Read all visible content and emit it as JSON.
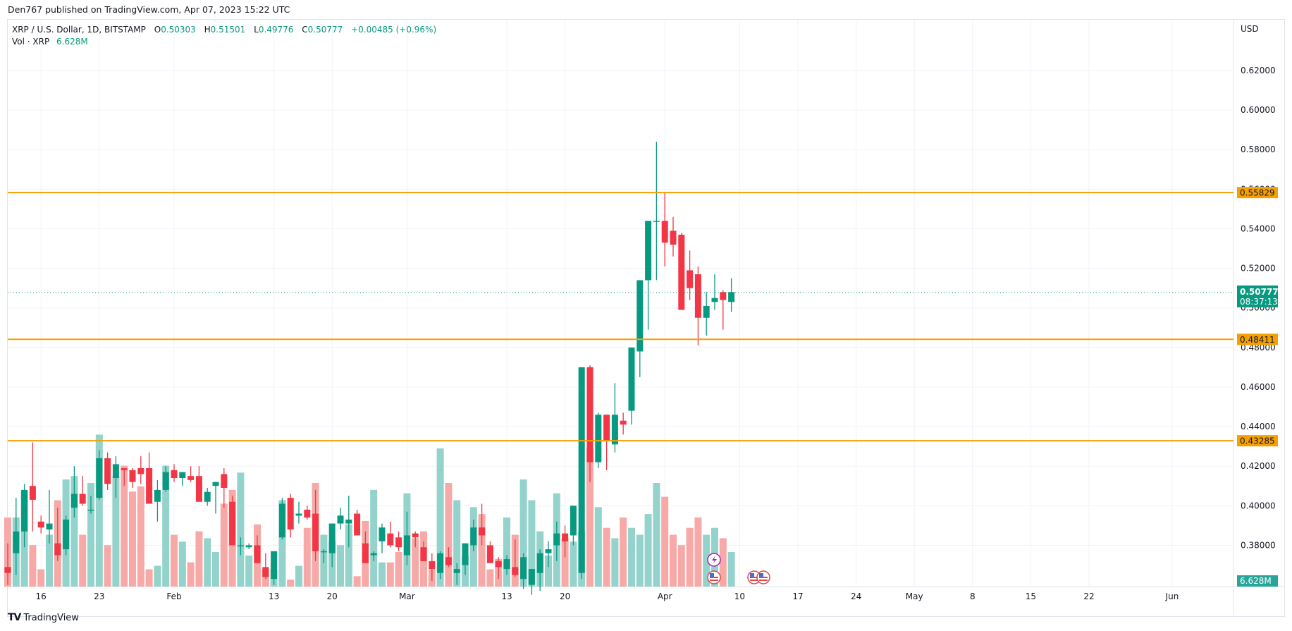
{
  "header": {
    "published": "Den767 published on TradingView.com, Apr 07, 2023 15:22 UTC"
  },
  "legend": {
    "symbol": "XRP / U.S. Dollar, 1D, BITSTAMP",
    "o_label": "O",
    "o_value": "0.50303",
    "h_label": "H",
    "h_value": "0.51501",
    "l_label": "L",
    "l_value": "0.49776",
    "c_label": "C",
    "c_value": "0.50777",
    "change": "+0.00485 (+0.96%)",
    "vol_label": "Vol · XRP",
    "vol_value": "6.628M"
  },
  "axis": {
    "currency": "USD",
    "current_price": "0.50777",
    "countdown": "08:37:13",
    "volume_tag": "6.628M"
  },
  "levels": [
    {
      "label": "0.55829",
      "price": 0.55829
    },
    {
      "label": "0.48411",
      "price": 0.48411
    },
    {
      "label": "0.43285",
      "price": 0.43285
    }
  ],
  "footer": {
    "brand": "TradingView"
  },
  "colors": {
    "up": "#089981",
    "down": "#f23645",
    "up_vol": "#93d3cb",
    "down_vol": "#f7a9a7",
    "level": "#f5a000",
    "grid": "#f0f3fa",
    "text": "#131722"
  },
  "chart_data": {
    "type": "candlestick",
    "title": "XRP / U.S. Dollar, 1D, BITSTAMP",
    "xlabel": "",
    "ylabel": "USD",
    "ylim": [
      0.365,
      0.635
    ],
    "y_ticks": [
      0.38,
      0.4,
      0.42,
      0.44,
      0.46,
      0.48,
      0.5,
      0.52,
      0.54,
      0.56,
      0.58,
      0.6,
      0.62
    ],
    "x_ticks": [
      {
        "label": "16",
        "day": 4
      },
      {
        "label": "23",
        "day": 11
      },
      {
        "label": "Feb",
        "day": 20
      },
      {
        "label": "13",
        "day": 32
      },
      {
        "label": "20",
        "day": 39
      },
      {
        "label": "Mar",
        "day": 48
      },
      {
        "label": "13",
        "day": 60
      },
      {
        "label": "20",
        "day": 67
      },
      {
        "label": "Apr",
        "day": 79
      },
      {
        "label": "10",
        "day": 88
      },
      {
        "label": "17",
        "day": 95
      },
      {
        "label": "24",
        "day": 102
      },
      {
        "label": "May",
        "day": 109
      },
      {
        "label": "8",
        "day": 116
      },
      {
        "label": "15",
        "day": 123
      },
      {
        "label": "22",
        "day": 130
      },
      {
        "label": "Jun",
        "day": 140
      }
    ],
    "horizontal_levels": [
      0.55829,
      0.48411,
      0.43285
    ],
    "last_price": 0.50777,
    "candles": [
      [
        0.369,
        0.381,
        0.36,
        0.366
      ],
      [
        0.376,
        0.404,
        0.365,
        0.387
      ],
      [
        0.387,
        0.411,
        0.379,
        0.408
      ],
      [
        0.41,
        0.432,
        0.387,
        0.403
      ],
      [
        0.392,
        0.395,
        0.386,
        0.389
      ],
      [
        0.388,
        0.408,
        0.381,
        0.391
      ],
      [
        0.381,
        0.399,
        0.372,
        0.375
      ],
      [
        0.378,
        0.395,
        0.375,
        0.393
      ],
      [
        0.399,
        0.42,
        0.394,
        0.406
      ],
      [
        0.406,
        0.415,
        0.4,
        0.401
      ],
      [
        0.398,
        0.405,
        0.396,
        0.398
      ],
      [
        0.404,
        0.428,
        0.403,
        0.424
      ],
      [
        0.424,
        0.427,
        0.408,
        0.411
      ],
      [
        0.414,
        0.425,
        0.404,
        0.421
      ],
      [
        0.419,
        0.417,
        0.41,
        0.418
      ],
      [
        0.418,
        0.419,
        0.409,
        0.412
      ],
      [
        0.419,
        0.425,
        0.411,
        0.416
      ],
      [
        0.419,
        0.427,
        0.403,
        0.401
      ],
      [
        0.402,
        0.413,
        0.392,
        0.408
      ],
      [
        0.408,
        0.42,
        0.407,
        0.417
      ],
      [
        0.418,
        0.421,
        0.412,
        0.414
      ],
      [
        0.414,
        0.416,
        0.41,
        0.417
      ],
      [
        0.415,
        0.42,
        0.412,
        0.413
      ],
      [
        0.415,
        0.42,
        0.405,
        0.402
      ],
      [
        0.402,
        0.409,
        0.4,
        0.407
      ],
      [
        0.41,
        0.409,
        0.396,
        0.412
      ],
      [
        0.416,
        0.419,
        0.399,
        0.409
      ],
      [
        0.402,
        0.405,
        0.39,
        0.38
      ],
      [
        0.38,
        0.384,
        0.375,
        0.38
      ],
      [
        0.379,
        0.381,
        0.378,
        0.38
      ],
      [
        0.38,
        0.385,
        0.372,
        0.371
      ],
      [
        0.369,
        0.376,
        0.363,
        0.364
      ],
      [
        0.363,
        0.375,
        0.36,
        0.377
      ],
      [
        0.384,
        0.404,
        0.383,
        0.401
      ],
      [
        0.404,
        0.406,
        0.384,
        0.388
      ],
      [
        0.395,
        0.402,
        0.391,
        0.396
      ],
      [
        0.398,
        0.4,
        0.393,
        0.394
      ],
      [
        0.396,
        0.408,
        0.372,
        0.377
      ],
      [
        0.377,
        0.378,
        0.371,
        0.377
      ],
      [
        0.376,
        0.39,
        0.369,
        0.391
      ],
      [
        0.391,
        0.399,
        0.388,
        0.395
      ],
      [
        0.391,
        0.405,
        0.379,
        0.393
      ],
      [
        0.396,
        0.398,
        0.385,
        0.385
      ],
      [
        0.381,
        0.387,
        0.374,
        0.371
      ],
      [
        0.375,
        0.377,
        0.372,
        0.376
      ],
      [
        0.382,
        0.391,
        0.376,
        0.389
      ],
      [
        0.386,
        0.392,
        0.379,
        0.38
      ],
      [
        0.384,
        0.387,
        0.377,
        0.379
      ],
      [
        0.375,
        0.397,
        0.37,
        0.385
      ],
      [
        0.386,
        0.387,
        0.379,
        0.384
      ],
      [
        0.379,
        0.382,
        0.373,
        0.372
      ],
      [
        0.372,
        0.376,
        0.362,
        0.368
      ],
      [
        0.366,
        0.377,
        0.363,
        0.376
      ],
      [
        0.374,
        0.379,
        0.369,
        0.37
      ],
      [
        0.366,
        0.371,
        0.36,
        0.368
      ],
      [
        0.37,
        0.379,
        0.365,
        0.381
      ],
      [
        0.38,
        0.393,
        0.377,
        0.389
      ],
      [
        0.389,
        0.401,
        0.38,
        0.385
      ],
      [
        0.38,
        0.382,
        0.378,
        0.371
      ],
      [
        0.372,
        0.374,
        0.363,
        0.369
      ],
      [
        0.368,
        0.375,
        0.365,
        0.373
      ],
      [
        0.369,
        0.383,
        0.364,
        0.365
      ],
      [
        0.363,
        0.376,
        0.358,
        0.374
      ],
      [
        0.36,
        0.362,
        0.355,
        0.368
      ],
      [
        0.366,
        0.378,
        0.357,
        0.376
      ],
      [
        0.376,
        0.382,
        0.369,
        0.378
      ],
      [
        0.38,
        0.392,
        0.372,
        0.386
      ],
      [
        0.386,
        0.39,
        0.374,
        0.382
      ],
      [
        0.385,
        0.394,
        0.38,
        0.4
      ],
      [
        0.366,
        0.47,
        0.363,
        0.47
      ],
      [
        0.47,
        0.471,
        0.412,
        0.422
      ],
      [
        0.422,
        0.447,
        0.419,
        0.446
      ],
      [
        0.446,
        0.446,
        0.418,
        0.433
      ],
      [
        0.431,
        0.462,
        0.427,
        0.446
      ],
      [
        0.443,
        0.447,
        0.436,
        0.441
      ],
      [
        0.448,
        0.478,
        0.441,
        0.48
      ],
      [
        0.478,
        0.466,
        0.465,
        0.514
      ],
      [
        0.514,
        0.532,
        0.489,
        0.544
      ],
      [
        0.544,
        0.584,
        0.514,
        0.544
      ],
      [
        0.544,
        0.558,
        0.521,
        0.533
      ],
      [
        0.539,
        0.546,
        0.526,
        0.532
      ],
      [
        0.537,
        0.538,
        0.499,
        0.499
      ],
      [
        0.519,
        0.529,
        0.504,
        0.51
      ],
      [
        0.517,
        0.521,
        0.481,
        0.495
      ],
      [
        0.495,
        0.508,
        0.486,
        0.501
      ],
      [
        0.503,
        0.517,
        0.499,
        0.505
      ],
      [
        0.508,
        0.509,
        0.489,
        0.504
      ],
      [
        0.503,
        0.515,
        0.498,
        0.508
      ]
    ],
    "volumes": [
      40,
      40,
      55,
      24,
      10,
      30,
      50,
      62,
      64,
      30,
      60,
      88,
      24,
      64,
      70,
      55,
      58,
      10,
      12,
      70,
      30,
      26,
      14,
      32,
      28,
      20,
      48,
      56,
      66,
      18,
      36,
      10,
      10,
      50,
      4,
      12,
      34,
      60,
      30,
      26,
      24,
      36,
      6,
      38,
      56,
      14,
      14,
      20,
      54,
      28,
      32,
      10,
      80,
      60,
      50,
      18,
      46,
      42,
      10,
      16,
      40,
      30,
      62,
      50,
      32,
      18,
      54,
      28,
      26,
      32,
      80,
      46,
      34,
      28,
      40,
      34,
      30,
      42,
      60,
      52,
      30,
      24,
      34,
      40,
      30,
      34,
      28,
      20
    ]
  }
}
